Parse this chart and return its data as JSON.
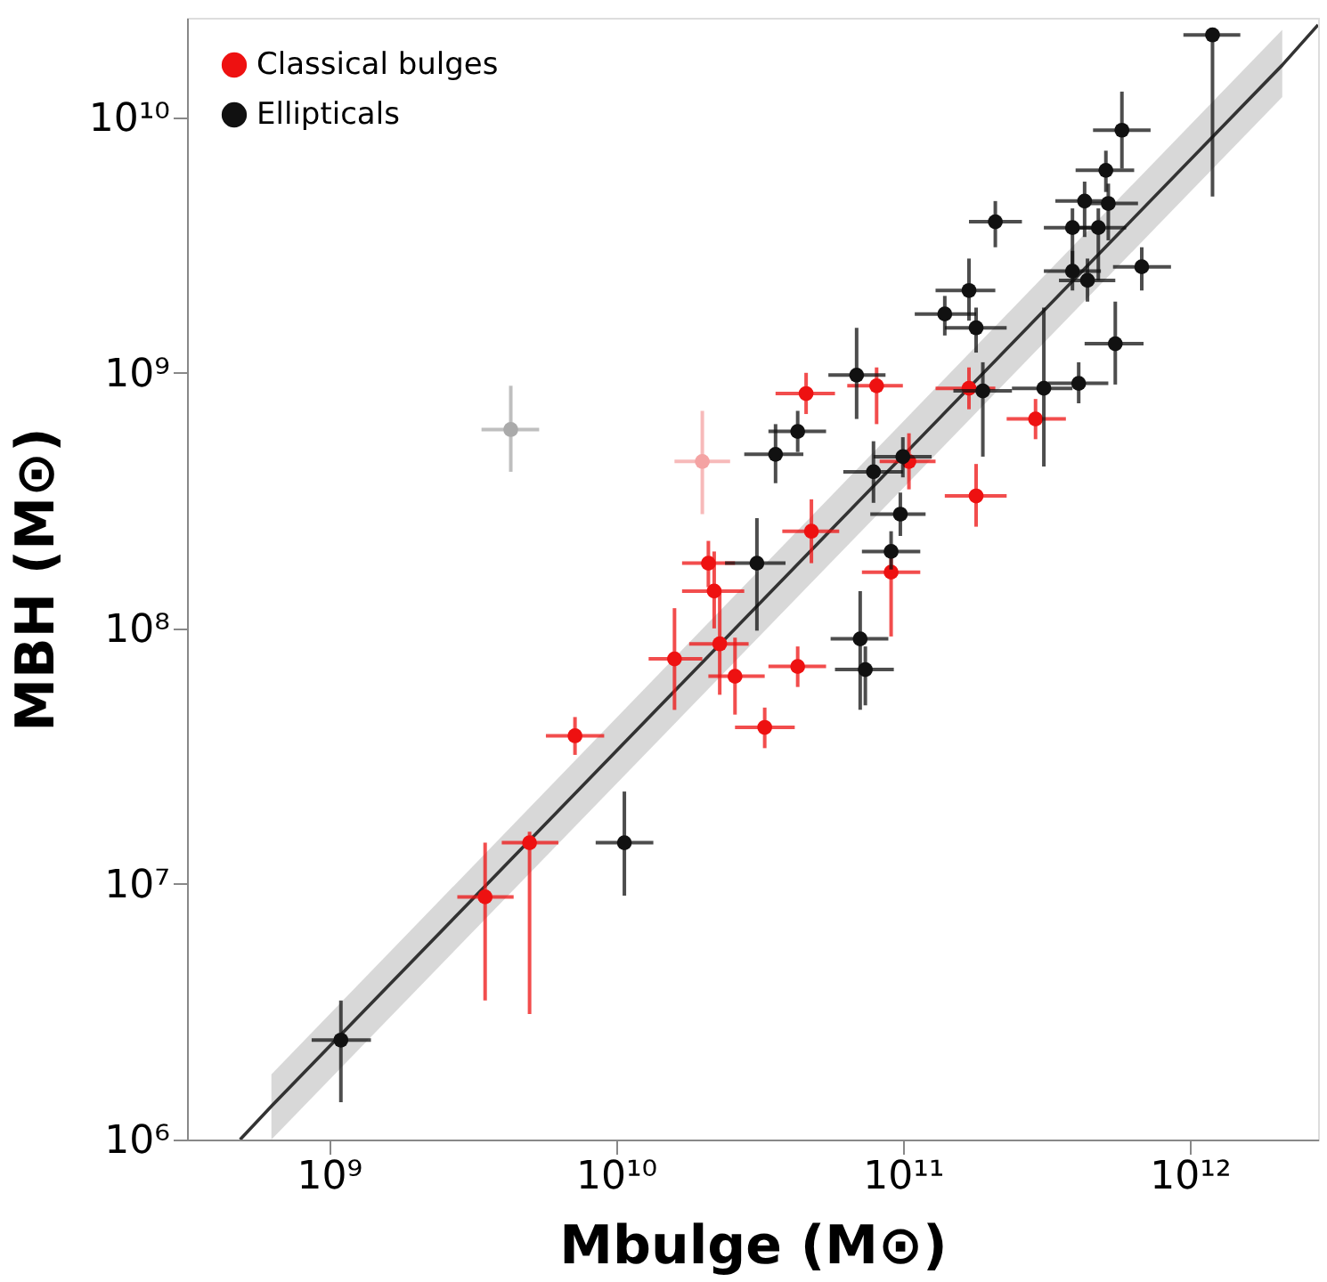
{
  "chart_data": {
    "type": "scatter",
    "xlabel": "Mbulge (M⊙)",
    "ylabel": "MBH (M⊙)",
    "log": "xy",
    "grid": false,
    "legend": "top left",
    "marker": "circle",
    "xlim": [
      320000000.0,
      2800000000000.0
    ],
    "ylim": [
      1000000.0,
      24500000000.0
    ],
    "xticks": [
      {
        "value": 1000000000.0,
        "label": "10⁹"
      },
      {
        "value": 10000000000.0,
        "label": "10¹⁰"
      },
      {
        "value": 100000000000.0,
        "label": "10¹¹"
      },
      {
        "value": 1000000000000.0,
        "label": "10¹²"
      }
    ],
    "yticks": [
      {
        "value": 1000000.0,
        "label": "10⁶"
      },
      {
        "value": 10000000.0,
        "label": "10⁷"
      },
      {
        "value": 100000000.0,
        "label": "10⁸"
      },
      {
        "value": 1000000000.0,
        "label": "10⁹"
      },
      {
        "value": 10000000000.0,
        "label": "10¹⁰"
      }
    ],
    "series": [
      {
        "type": "line",
        "color": "#333333",
        "x": [
          490000000.0,
          630000000.0,
          2100000000000.0,
          2800000000000.0
        ],
        "values": [
          1000000.0,
          1350000.0,
          16000000000.0,
          23000000000.0
        ],
        "lower": [
          null,
          1000000.0,
          12000000000.0,
          null
        ],
        "upper": [
          null,
          1800000.0,
          22000000000.0,
          null
        ],
        "marker": "none",
        "line_style": "solid"
      },
      {
        "name": "Classical bulges",
        "color": "#ee1111",
        "x": [
          46000000000.0,
          81000000000.0,
          170000000000.0,
          290000000000.0,
          105000000000.0,
          180000000000.0,
          48000000000.0,
          21000000000.0,
          91000000000.0,
          22000000000.0,
          16000000000.0,
          23000000000.0,
          26000000000.0,
          43000000000.0,
          33000000000.0,
          7200000000.0,
          5000000000.0,
          3500000000.0
        ],
        "values": [
          830000000.0,
          890000000.0,
          870000000.0,
          660000000.0,
          450000000.0,
          330000000.0,
          240000000.0,
          180000000.0,
          166000000.0,
          140000000.0,
          76000000.0,
          87000000.0,
          65000000.0,
          71000000.0,
          41000000.0,
          38000000.0,
          14500000.0,
          8900000.0
        ],
        "xerrors": [
          [
            36000000000.0,
            58000000000.0
          ],
          [
            64000000000.0,
            100000000000.0
          ],
          [
            130000000000.0,
            210000000000.0
          ],
          [
            230000000000.0,
            370000000000.0
          ],
          [
            83000000000.0,
            130000000000.0
          ],
          [
            140000000000.0,
            230000000000.0
          ],
          [
            38000000000.0,
            60000000000.0
          ],
          [
            17000000000.0,
            26000000000.0
          ],
          [
            72000000000.0,
            115000000000.0
          ],
          [
            17000000000.0,
            28000000000.0
          ],
          [
            13000000000.0,
            20000000000.0
          ],
          [
            18000000000.0,
            29000000000.0
          ],
          [
            21000000000.0,
            33000000000.0
          ],
          [
            34000000000.0,
            54000000000.0
          ],
          [
            26000000000.0,
            42000000000.0
          ],
          [
            5700000000.0,
            9100000000.0
          ],
          [
            4000000000.0,
            6300000000.0
          ],
          [
            2800000000.0,
            4400000000.0
          ]
        ],
        "errors": [
          [
            690000000.0,
            1000000000.0
          ],
          [
            630000000.0,
            1050000000.0
          ],
          [
            720000000.0,
            1050000000.0
          ],
          [
            550000000.0,
            790000000.0
          ],
          [
            350000000.0,
            580000000.0
          ],
          [
            250000000.0,
            440000000.0
          ],
          [
            180000000.0,
            320000000.0
          ],
          [
            145000000.0,
            220000000.0
          ],
          [
            93000000.0,
            200000000.0
          ],
          [
            100000000.0,
            200000000.0
          ],
          [
            48000000.0,
            120000000.0
          ],
          [
            55000000.0,
            140000000.0
          ],
          [
            46000000.0,
            92000000.0
          ],
          [
            59000000.0,
            85000000.0
          ],
          [
            34000000.0,
            49000000.0
          ],
          [
            32000000.0,
            45000000.0
          ],
          [
            3100000.0,
            16000000.0
          ],
          [
            3500000.0,
            14500000.0
          ]
        ]
      },
      {
        "name": "Ellipticals",
        "color": "#111111",
        "x": [
          1200000000000.0,
          580000000000.0,
          510000000000.0,
          430000000000.0,
          520000000000.0,
          390000000000.0,
          480000000000.0,
          210000000000.0,
          680000000000.0,
          390000000000.0,
          440000000000.0,
          170000000000.0,
          140000000000.0,
          180000000000.0,
          550000000000.0,
          69000000000.0,
          410000000000.0,
          310000000000.0,
          190000000000.0,
          43000000000.0,
          36000000000.0,
          100000000000.0,
          79000000000.0,
          98000000000.0,
          31000000000.0,
          91000000000.0,
          71000000000.0,
          74000000000.0,
          10700000000.0,
          1100000000.0
        ],
        "values": [
          21000000000.0,
          8900000000.0,
          6200000000.0,
          4700000000.0,
          4600000000.0,
          3700000000.0,
          3700000000.0,
          3900000000.0,
          2600000000.0,
          2500000000.0,
          2300000000.0,
          2100000000.0,
          1700000000.0,
          1500000000.0,
          1300000000.0,
          980000000.0,
          910000000.0,
          870000000.0,
          850000000.0,
          590000000.0,
          480000000.0,
          470000000.0,
          410000000.0,
          280000000.0,
          180000000.0,
          200000000.0,
          91000000.0,
          69000000.0,
          14500000.0,
          2450000.0
        ],
        "xerrors": [
          [
            950000000000.0,
            1500000000000.0
          ],
          [
            460000000000.0,
            730000000000.0
          ],
          [
            400000000000.0,
            640000000000.0
          ],
          [
            340000000000.0,
            540000000000.0
          ],
          [
            410000000000.0,
            660000000000.0
          ],
          [
            310000000000.0,
            490000000000.0
          ],
          [
            380000000000.0,
            600000000000.0
          ],
          [
            170000000000.0,
            260000000000.0
          ],
          [
            540000000000.0,
            860000000000.0
          ],
          [
            310000000000.0,
            490000000000.0
          ],
          [
            350000000000.0,
            550000000000.0
          ],
          [
            130000000000.0,
            210000000000.0
          ],
          [
            110000000000.0,
            180000000000.0
          ],
          [
            140000000000.0,
            230000000000.0
          ],
          [
            430000000000.0,
            690000000000.0
          ],
          [
            55000000000.0,
            87000000000.0
          ],
          [
            320000000000.0,
            520000000000.0
          ],
          [
            240000000000.0,
            390000000000.0
          ],
          [
            150000000000.0,
            240000000000.0
          ],
          [
            34000000000.0,
            54000000000.0
          ],
          [
            28000000000.0,
            45000000000.0
          ],
          [
            79000000000.0,
            126000000000.0
          ],
          [
            62000000000.0,
            100000000000.0
          ],
          [
            77000000000.0,
            120000000000.0
          ],
          [
            24000000000.0,
            39000000000.0
          ],
          [
            72000000000.0,
            115000000000.0
          ],
          [
            56000000000.0,
            89000000000.0
          ],
          [
            58000000000.0,
            93000000000.0
          ],
          [
            8500000000.0,
            13500000000.0
          ],
          [
            870000000.0,
            1400000000.0
          ]
        ],
        "errors": [
          [
            4900000000.0,
            22000000000.0
          ],
          [
            6300000000.0,
            12600000000.0
          ],
          [
            5100000000.0,
            7400000000.0
          ],
          [
            3400000000.0,
            5600000000.0
          ],
          [
            3300000000.0,
            5500000000.0
          ],
          [
            2400000000.0,
            4400000000.0
          ],
          [
            2300000000.0,
            4400000000.0
          ],
          [
            3100000000.0,
            4700000000.0
          ],
          [
            2100000000.0,
            3100000000.0
          ],
          [
            2100000000.0,
            3000000000.0
          ],
          [
            1900000000.0,
            2800000000.0
          ],
          [
            1600000000.0,
            2800000000.0
          ],
          [
            1400000000.0,
            2000000000.0
          ],
          [
            1200000000.0,
            1800000000.0
          ],
          [
            900000000.0,
            1900000000.0
          ],
          [
            660000000.0,
            1500000000.0
          ],
          [
            760000000.0,
            1100000000.0
          ],
          [
            430000000.0,
            1800000000.0
          ],
          [
            470000000.0,
            1100000000.0
          ],
          [
            490000000.0,
            710000000.0
          ],
          [
            370000000.0,
            630000000.0
          ],
          [
            390000000.0,
            560000000.0
          ],
          [
            310000000.0,
            540000000.0
          ],
          [
            230000000.0,
            340000000.0
          ],
          [
            98000000.0,
            270000000.0
          ],
          [
            170000000.0,
            240000000.0
          ],
          [
            48000000.0,
            140000000.0
          ],
          [
            50000000.0,
            85000000.0
          ],
          [
            9000000.0,
            23000000.0
          ],
          [
            1400000.0,
            3500000.0
          ]
        ]
      },
      {
        "color": "#f4a3a3",
        "x": [
          20000000000.0
        ],
        "values": [
          450000000.0
        ],
        "xerrors": [
          [
            16000000000.0,
            25000000000.0
          ]
        ],
        "errors": [
          [
            280000000.0,
            710000000.0
          ]
        ]
      },
      {
        "color": "#aaaaaa",
        "x": [
          4300000000.0
        ],
        "values": [
          600000000.0
        ],
        "xerrors": [
          [
            3400000000.0,
            5400000000.0
          ]
        ],
        "errors": [
          [
            410000000.0,
            890000000.0
          ]
        ]
      }
    ]
  }
}
